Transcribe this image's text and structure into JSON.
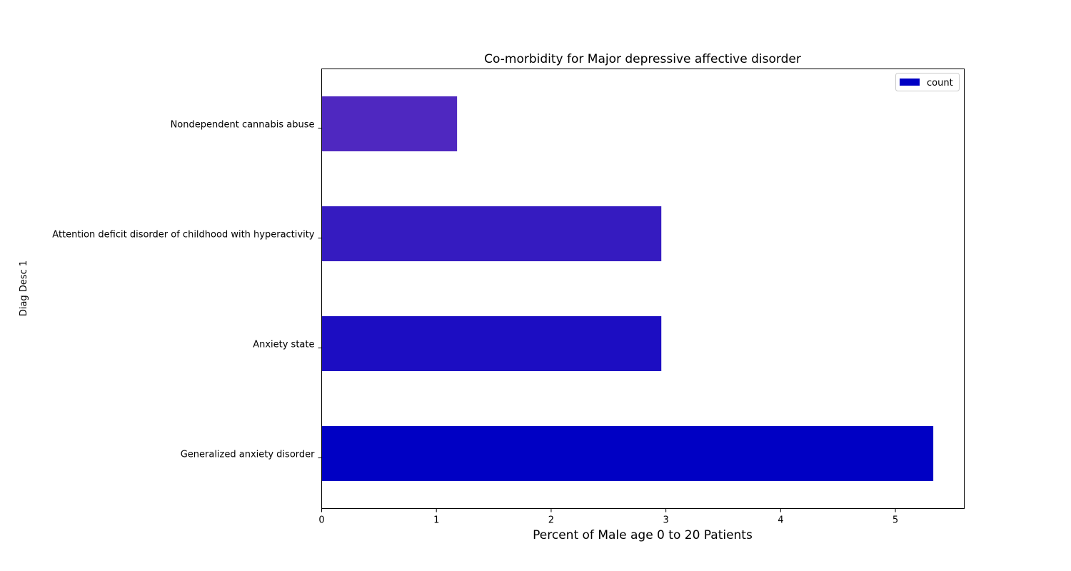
{
  "chart_data": {
    "type": "bar",
    "orientation": "horizontal",
    "title": "Co-morbidity for Major depressive affective disorder",
    "xlabel": "Percent of Male age 0 to 20 Patients",
    "ylabel": "Diag Desc 1",
    "xlim": [
      0,
      5.6
    ],
    "x_ticks": [
      "0",
      "1",
      "2",
      "3",
      "4",
      "5"
    ],
    "categories": [
      "Generalized anxiety disorder",
      "Anxiety state",
      "Attention deficit disorder of childhood with hyperactivity",
      "Nondependent cannabis abuse"
    ],
    "series": [
      {
        "name": "count",
        "values": [
          5.33,
          2.96,
          2.96,
          1.18
        ]
      }
    ],
    "bar_colors": [
      "#0000c4",
      "#1c0dc2",
      "#351bc0",
      "#4f28c0"
    ],
    "legend": {
      "position": "top-right",
      "color": "#0000c4"
    },
    "grid": false
  }
}
